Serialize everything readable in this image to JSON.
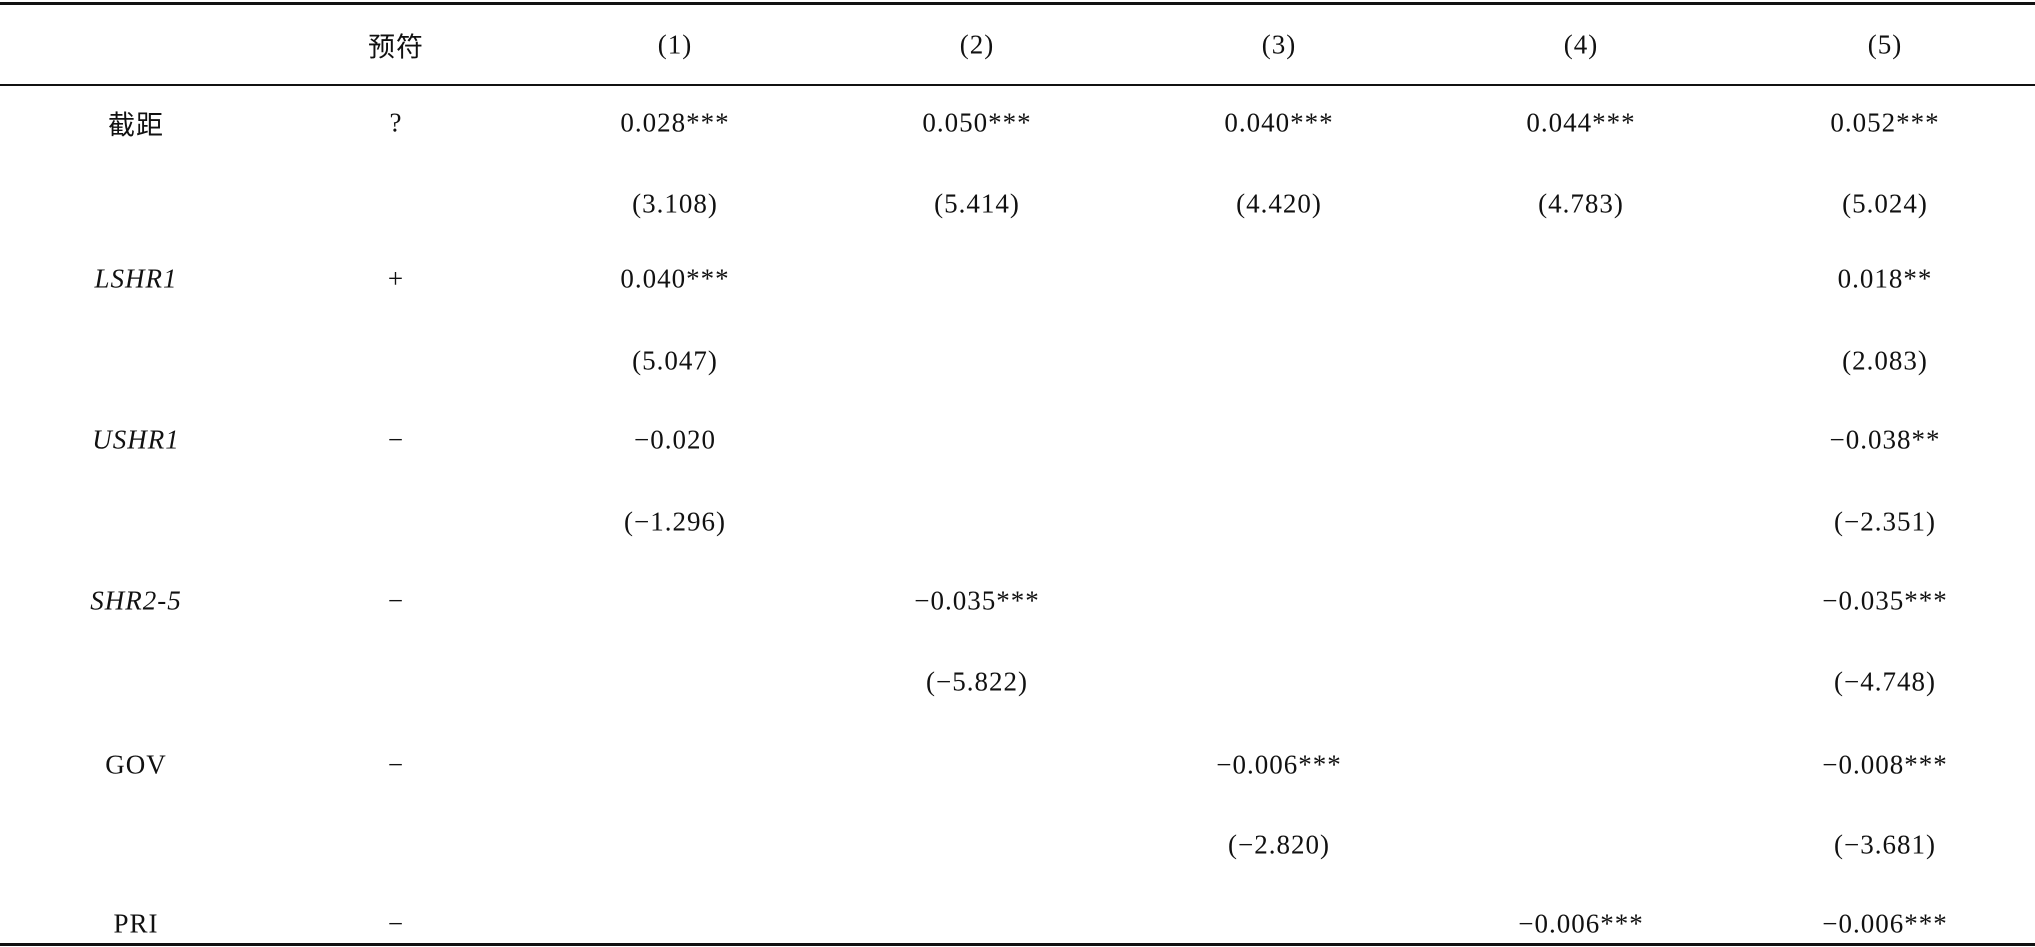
{
  "table": {
    "header": {
      "sign": "预符",
      "columns": [
        "(1)",
        "(2)",
        "(3)",
        "(4)",
        "(5)"
      ]
    },
    "rows": [
      [
        "截距",
        "?",
        "0.028***",
        "0.050***",
        "0.040***",
        "0.044***",
        "0.052***"
      ],
      [
        null,
        null,
        "(3.108)",
        "(5.414)",
        "(4.420)",
        "(4.783)",
        "(5.024)"
      ],
      [
        "LSHR1",
        "+",
        "0.040***",
        null,
        null,
        null,
        "0.018**"
      ],
      [
        null,
        null,
        "(5.047)",
        null,
        null,
        null,
        "(2.083)"
      ],
      [
        "USHR1",
        "−",
        "−0.020",
        null,
        null,
        null,
        "−0.038**"
      ],
      [
        null,
        null,
        "(−1.296)",
        null,
        null,
        null,
        "(−2.351)"
      ],
      [
        "SHR2-5",
        "−",
        null,
        "−0.035***",
        null,
        null,
        "−0.035***"
      ],
      [
        null,
        null,
        null,
        "(−5.822)",
        null,
        null,
        "(−4.748)"
      ],
      [
        "GOV",
        "−",
        null,
        null,
        "−0.006***",
        null,
        "−0.008***"
      ],
      [
        null,
        null,
        null,
        null,
        "(−2.820)",
        null,
        "(−3.681)"
      ],
      [
        "PRI",
        "−",
        null,
        null,
        null,
        "−0.006***",
        "−0.006***"
      ]
    ]
  }
}
